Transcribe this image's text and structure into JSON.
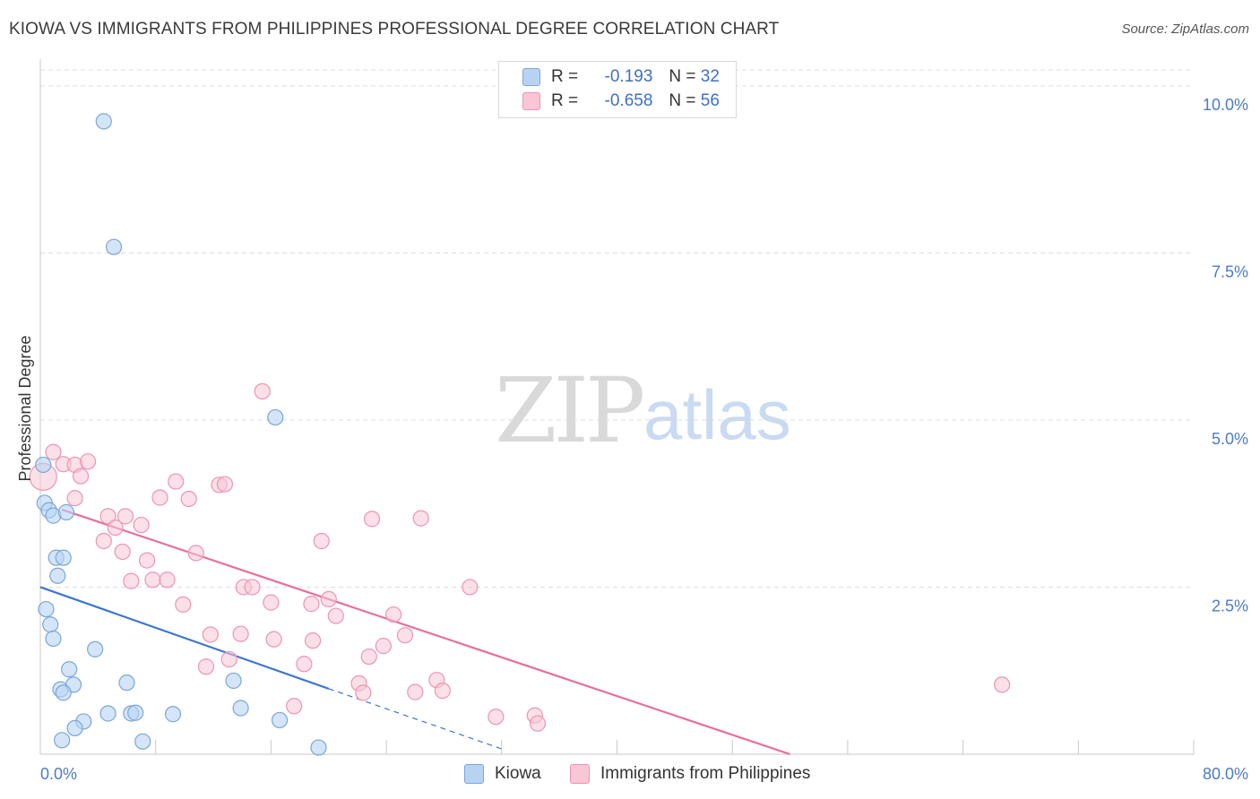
{
  "title": "KIOWA VS IMMIGRANTS FROM PHILIPPINES PROFESSIONAL DEGREE CORRELATION CHART",
  "source": "Source: ZipAtlas.com",
  "watermark": {
    "zip": "ZIP",
    "atlas": "atlas"
  },
  "colors": {
    "kiowa_fill": "#b8d3f2",
    "kiowa_stroke": "#7aa6dc",
    "kiowa_line": "#3a75d4",
    "phil_fill": "#f9c6d5",
    "phil_stroke": "#ec94b1",
    "phil_line": "#e86e98",
    "grid": "#dcdcdc",
    "tick_text": "#4a7bc8"
  },
  "legend": {
    "rows": [
      {
        "r_label": "R =",
        "r_value": "-0.193",
        "n_label": "N =",
        "n_value": "32"
      },
      {
        "r_label": "R =",
        "r_value": "-0.658",
        "n_label": "N =",
        "n_value": "56"
      }
    ]
  },
  "chart_data": {
    "type": "scatter",
    "title": "KIOWA VS IMMIGRANTS FROM PHILIPPINES PROFESSIONAL DEGREE CORRELATION CHART",
    "xlabel": "",
    "ylabel": "Professional Degree",
    "xlim": [
      0,
      80
    ],
    "ylim": [
      0,
      10.4
    ],
    "y_ticks": [
      {
        "value": 2.5,
        "label": "2.5%"
      },
      {
        "value": 5.0,
        "label": "5.0%"
      },
      {
        "value": 7.5,
        "label": "7.5%"
      },
      {
        "value": 10.0,
        "label": "10.0%"
      }
    ],
    "x_tick_labels": [
      {
        "value": 0,
        "label": "0.0%"
      },
      {
        "value": 80,
        "label": "80.0%"
      }
    ],
    "x_minor_ticks": [
      8,
      16,
      24,
      32,
      40,
      48,
      56,
      64,
      72,
      80
    ],
    "series": [
      {
        "name": "Kiowa",
        "r": -0.193,
        "n": 32,
        "points": [
          [
            4.4,
            9.47
          ],
          [
            5.1,
            7.59
          ],
          [
            16.3,
            5.04
          ],
          [
            0.2,
            4.33
          ],
          [
            0.3,
            3.76
          ],
          [
            0.6,
            3.65
          ],
          [
            0.9,
            3.57
          ],
          [
            1.8,
            3.62
          ],
          [
            1.1,
            2.94
          ],
          [
            1.6,
            2.94
          ],
          [
            1.2,
            2.67
          ],
          [
            0.4,
            2.17
          ],
          [
            0.7,
            1.94
          ],
          [
            0.9,
            1.73
          ],
          [
            3.8,
            1.57
          ],
          [
            2.0,
            1.27
          ],
          [
            1.4,
            0.97
          ],
          [
            2.3,
            1.04
          ],
          [
            6.0,
            1.07
          ],
          [
            13.4,
            1.1
          ],
          [
            1.6,
            0.92
          ],
          [
            4.7,
            0.61
          ],
          [
            6.3,
            0.61
          ],
          [
            6.6,
            0.62
          ],
          [
            9.2,
            0.6
          ],
          [
            13.9,
            0.69
          ],
          [
            3.0,
            0.49
          ],
          [
            2.4,
            0.39
          ],
          [
            16.6,
            0.51
          ],
          [
            1.5,
            0.21
          ],
          [
            7.1,
            0.19
          ],
          [
            19.3,
            0.1
          ]
        ],
        "trend": {
          "x0": 0,
          "y0": 2.5,
          "x1": 20,
          "y1": 0.98
        },
        "trend_dashed": {
          "x0": 20,
          "y0": 0.98,
          "x1": 32,
          "y1": 0.08
        }
      },
      {
        "name": "Immigrants from Philippines",
        "r": -0.658,
        "n": 56,
        "points": [
          [
            0.2,
            4.15
          ],
          [
            0.9,
            4.52
          ],
          [
            1.6,
            4.34
          ],
          [
            2.4,
            4.33
          ],
          [
            3.3,
            4.38
          ],
          [
            2.8,
            4.16
          ],
          [
            9.4,
            4.08
          ],
          [
            12.4,
            4.03
          ],
          [
            12.8,
            4.04
          ],
          [
            15.4,
            5.43
          ],
          [
            8.3,
            3.84
          ],
          [
            10.3,
            3.82
          ],
          [
            2.4,
            3.83
          ],
          [
            4.7,
            3.56
          ],
          [
            5.2,
            3.39
          ],
          [
            5.9,
            3.56
          ],
          [
            7.0,
            3.43
          ],
          [
            23.0,
            3.52
          ],
          [
            26.4,
            3.53
          ],
          [
            4.4,
            3.19
          ],
          [
            5.7,
            3.03
          ],
          [
            10.8,
            3.01
          ],
          [
            19.5,
            3.19
          ],
          [
            7.4,
            2.9
          ],
          [
            6.3,
            2.59
          ],
          [
            7.8,
            2.61
          ],
          [
            8.8,
            2.61
          ],
          [
            14.1,
            2.5
          ],
          [
            14.7,
            2.5
          ],
          [
            29.8,
            2.5
          ],
          [
            9.9,
            2.24
          ],
          [
            16.0,
            2.27
          ],
          [
            18.8,
            2.25
          ],
          [
            20.0,
            2.32
          ],
          [
            20.5,
            2.07
          ],
          [
            24.5,
            2.09
          ],
          [
            11.8,
            1.79
          ],
          [
            13.9,
            1.8
          ],
          [
            16.2,
            1.72
          ],
          [
            18.9,
            1.7
          ],
          [
            23.8,
            1.62
          ],
          [
            25.3,
            1.78
          ],
          [
            11.5,
            1.31
          ],
          [
            13.1,
            1.42
          ],
          [
            18.3,
            1.35
          ],
          [
            22.8,
            1.46
          ],
          [
            22.1,
            1.06
          ],
          [
            22.4,
            0.92
          ],
          [
            26.0,
            0.93
          ],
          [
            27.5,
            1.11
          ],
          [
            27.9,
            0.95
          ],
          [
            17.6,
            0.72
          ],
          [
            31.6,
            0.56
          ],
          [
            34.3,
            0.58
          ],
          [
            34.5,
            0.46
          ],
          [
            66.7,
            1.04
          ]
        ],
        "trend": {
          "x0": 1.5,
          "y0": 3.66,
          "x1": 52,
          "y1": 0.0
        }
      }
    ],
    "legend_labels": [
      "Kiowa",
      "Immigrants from Philippines"
    ]
  }
}
